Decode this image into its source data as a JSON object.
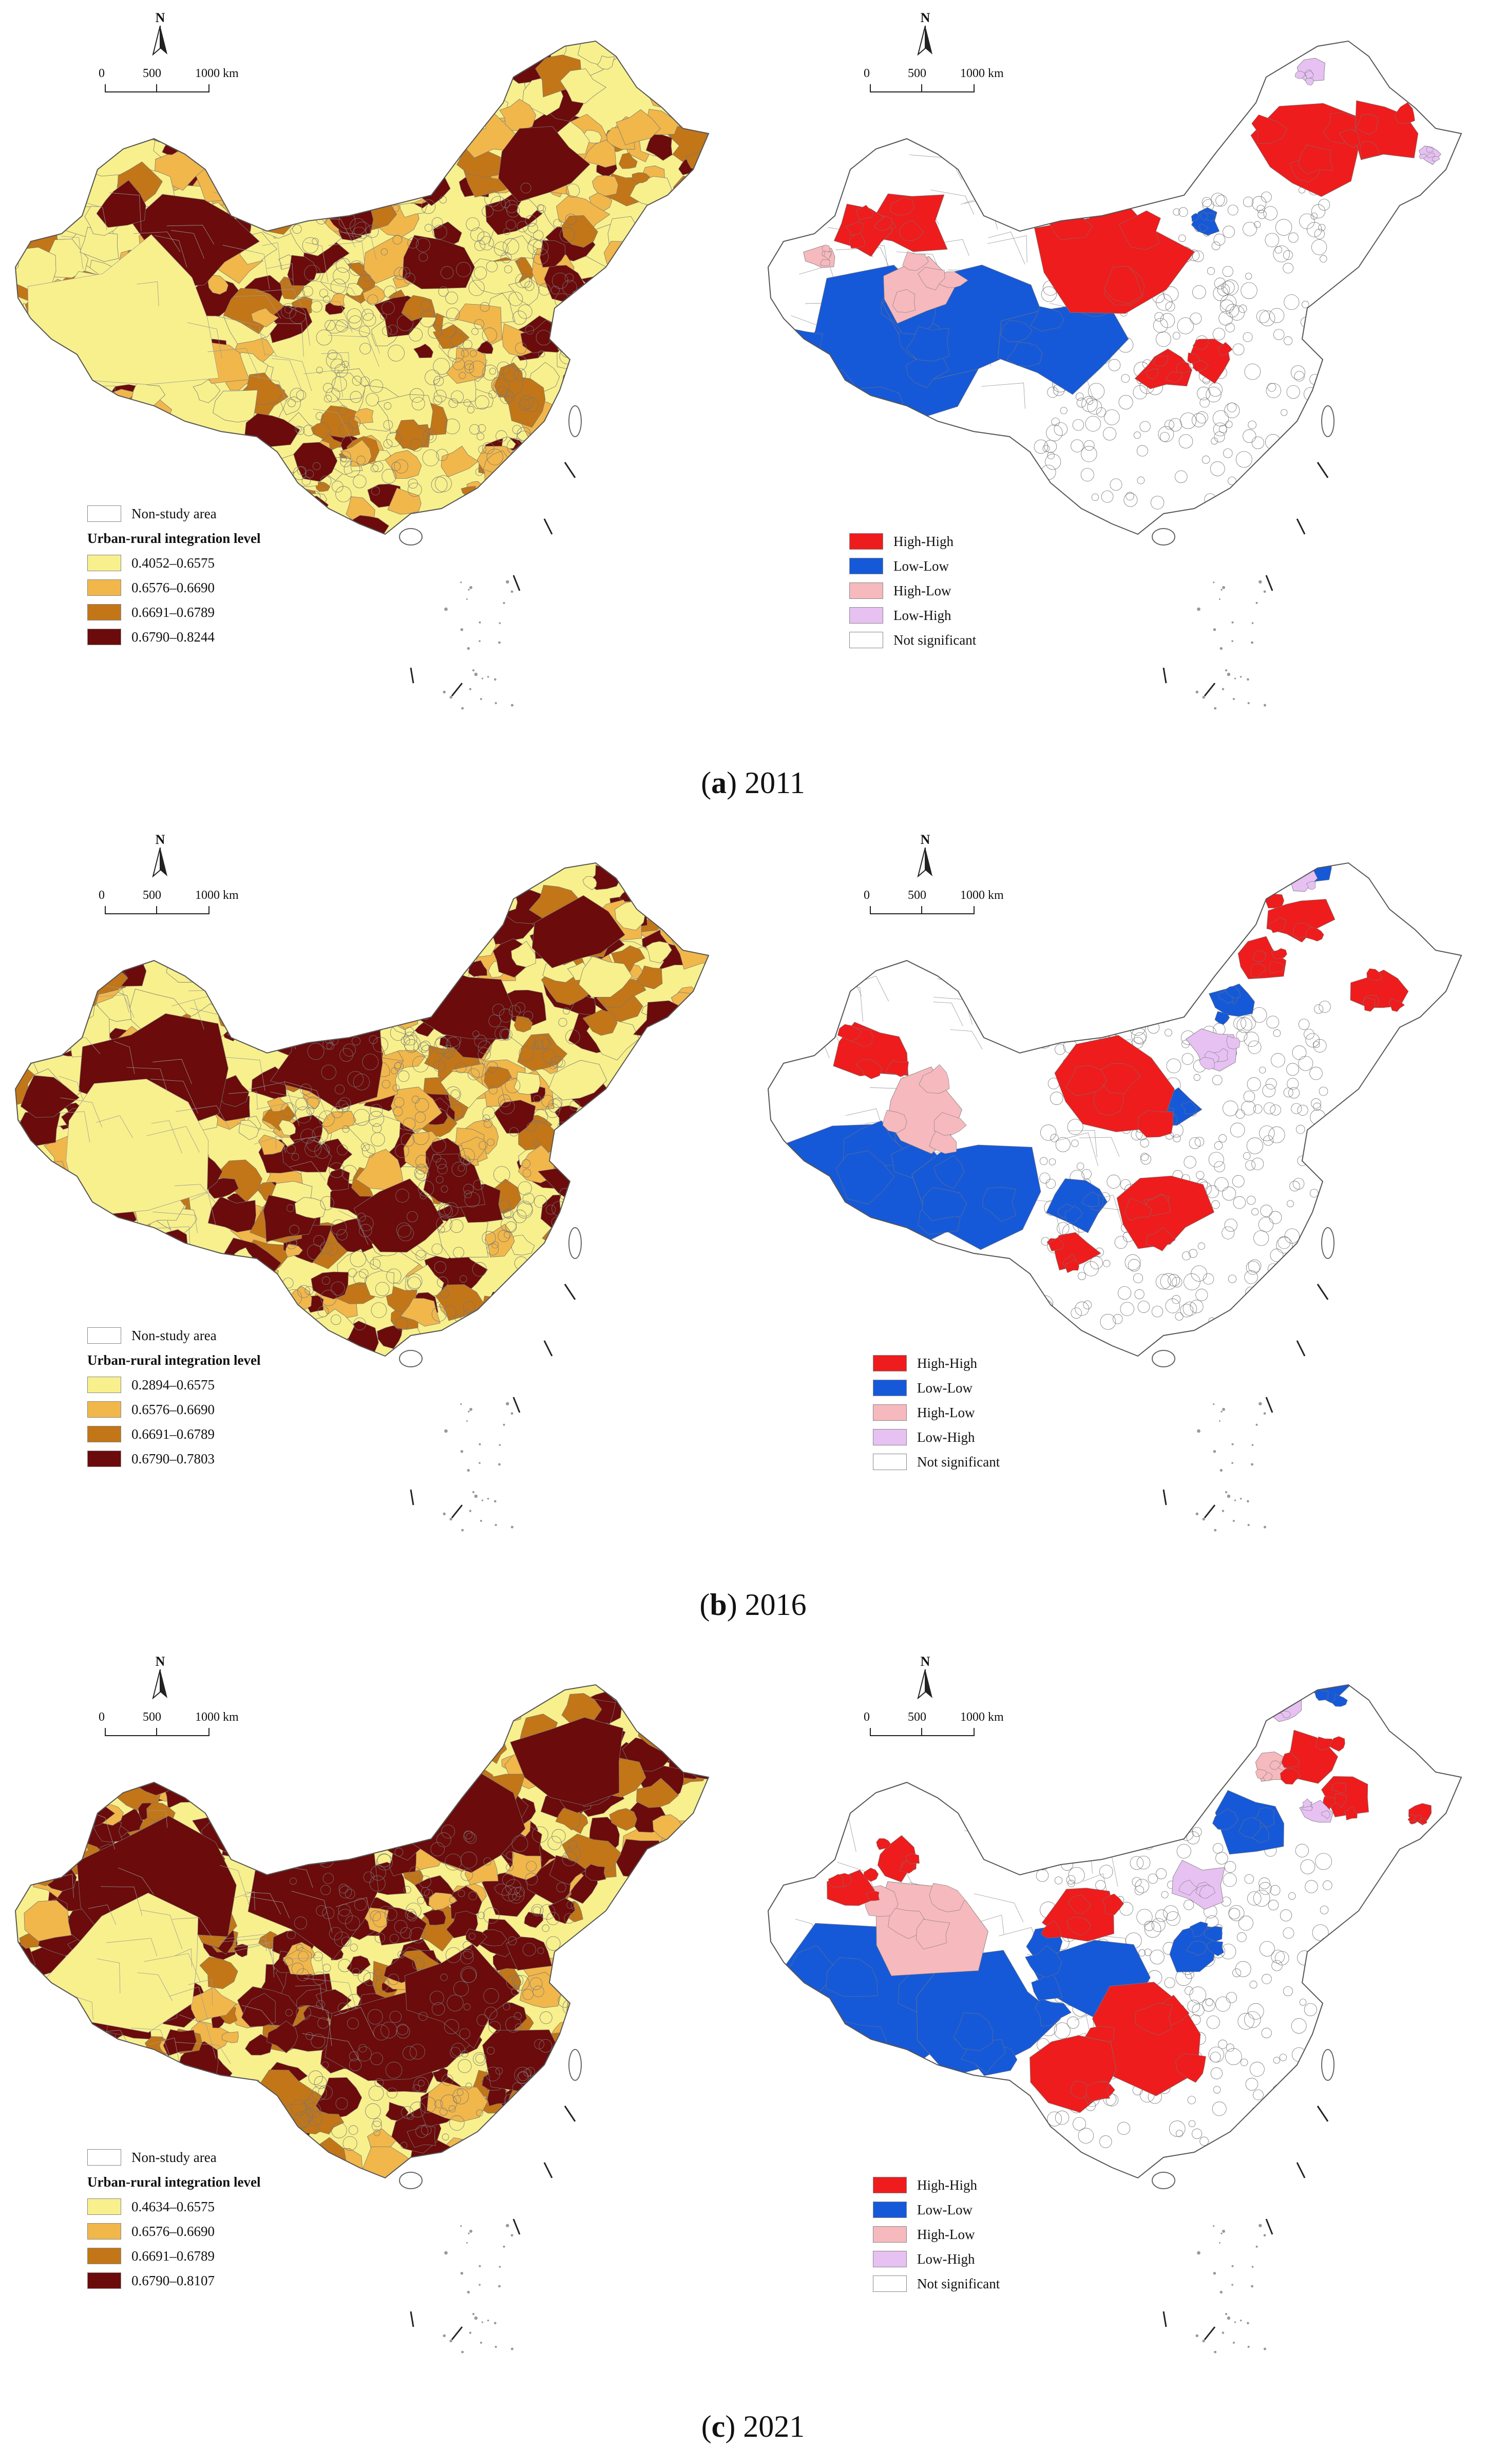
{
  "colors": {
    "level_1": "#f8f08c",
    "level_2": "#f1b74a",
    "level_3": "#c27618",
    "level_4": "#6b0b0b",
    "high_high": "#ee1c1c",
    "low_low": "#1659d8",
    "high_low": "#f6b9bd",
    "low_high": "#e6c1f2",
    "not_significant": "#ffffff"
  },
  "north_label": "N",
  "scale_labels": [
    "0",
    "500",
    "1000 km"
  ],
  "panels": [
    {
      "caption_letter": "a",
      "caption_year": "2011",
      "level_legend": {
        "non_study": "Non-study area",
        "title": "Urban-rural integration level",
        "classes": [
          "0.4052–0.6575",
          "0.6576–0.6690",
          "0.6691–0.6789",
          "0.6790–0.8244"
        ]
      },
      "lisa_legend": [
        "High-High",
        "Low-Low",
        "High-Low",
        "Low-High",
        "Not significant"
      ]
    },
    {
      "caption_letter": "b",
      "caption_year": "2016",
      "level_legend": {
        "non_study": "Non-study area",
        "title": "Urban-rural integration level",
        "classes": [
          "0.2894–0.6575",
          "0.6576–0.6690",
          "0.6691–0.6789",
          "0.6790–0.7803"
        ]
      },
      "lisa_legend": [
        "High-High",
        "Low-Low",
        "High-Low",
        "Low-High",
        "Not significant"
      ]
    },
    {
      "caption_letter": "c",
      "caption_year": "2021",
      "level_legend": {
        "non_study": "Non-study area",
        "title": "Urban-rural integration level",
        "classes": [
          "0.4634–0.6575",
          "0.6576–0.6690",
          "0.6691–0.6789",
          "0.6790–0.8107"
        ]
      },
      "lisa_legend": [
        "High-High",
        "Low-Low",
        "High-Low",
        "Low-High",
        "Not significant"
      ]
    }
  ]
}
